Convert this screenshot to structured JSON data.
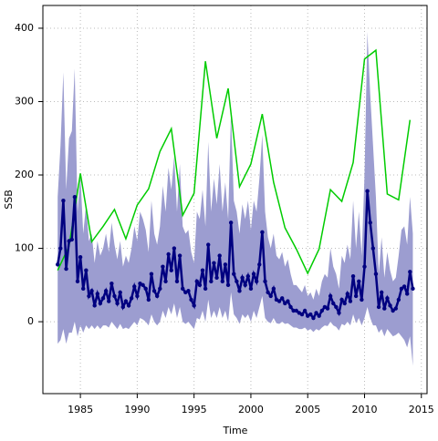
{
  "chart_data": {
    "type": "line",
    "x_label": "Time",
    "y_label": "SSB",
    "xlim": [
      1981.7,
      2015.5
    ],
    "ylim": [
      -98,
      431
    ],
    "xticks": [
      1985,
      1990,
      1995,
      2000,
      2005,
      2010,
      2015
    ],
    "yticks": [
      0,
      100,
      200,
      300,
      400
    ],
    "grid": true,
    "series": [
      {
        "color": "#00cc00",
        "x": [
          1983,
          1984,
          1985,
          1986,
          1987,
          1988,
          1989,
          1990,
          1991,
          1992,
          1993,
          1994,
          1995,
          1996,
          1997,
          1998,
          1999,
          2000,
          2001,
          2002,
          2003,
          2004,
          2005,
          2006,
          2007,
          2008,
          2009,
          2010,
          2011,
          2012,
          2013,
          2014
        ],
        "values": [
          70,
          103,
          202,
          109,
          130,
          153,
          113,
          159,
          181,
          232,
          263,
          145,
          175,
          355,
          250,
          318,
          184,
          215,
          283,
          190,
          128,
          99,
          66,
          99,
          180,
          164,
          217,
          358,
          370,
          174,
          166,
          275
        ]
      },
      {
        "color": "#000080",
        "markers": true,
        "band_color": "#9c9dd0",
        "x": [
          1983,
          1983.25,
          1983.5,
          1983.75,
          1984,
          1984.25,
          1984.5,
          1984.75,
          1985,
          1985.25,
          1985.5,
          1985.75,
          1986,
          1986.25,
          1986.5,
          1986.75,
          1987,
          1987.25,
          1987.5,
          1987.75,
          1988,
          1988.25,
          1988.5,
          1988.75,
          1989,
          1989.25,
          1989.5,
          1989.75,
          1990,
          1990.25,
          1990.5,
          1990.75,
          1991,
          1991.25,
          1991.5,
          1991.75,
          1992,
          1992.25,
          1992.5,
          1992.75,
          1993,
          1993.25,
          1993.5,
          1993.75,
          1994,
          1994.25,
          1994.5,
          1994.75,
          1995,
          1995.25,
          1995.5,
          1995.75,
          1996,
          1996.25,
          1996.5,
          1996.75,
          1997,
          1997.25,
          1997.5,
          1997.75,
          1998,
          1998.25,
          1998.5,
          1998.75,
          1999,
          1999.25,
          1999.5,
          1999.75,
          2000,
          2000.25,
          2000.5,
          2000.75,
          2001,
          2001.25,
          2001.5,
          2001.75,
          2002,
          2002.25,
          2002.5,
          2002.75,
          2003,
          2003.25,
          2003.5,
          2003.75,
          2004,
          2004.25,
          2004.5,
          2004.75,
          2005,
          2005.25,
          2005.5,
          2005.75,
          2006,
          2006.25,
          2006.5,
          2006.75,
          2007,
          2007.25,
          2007.5,
          2007.75,
          2008,
          2008.25,
          2008.5,
          2008.75,
          2009,
          2009.25,
          2009.5,
          2009.75,
          2010,
          2010.25,
          2010.5,
          2010.75,
          2011,
          2011.25,
          2011.5,
          2011.75,
          2012,
          2012.25,
          2012.5,
          2012.75,
          2013,
          2013.25,
          2013.5,
          2013.75,
          2014,
          2014.25
        ],
        "values": [
          78,
          100,
          165,
          72,
          110,
          112,
          170,
          55,
          88,
          45,
          70,
          35,
          42,
          22,
          38,
          25,
          32,
          42,
          28,
          52,
          35,
          25,
          40,
          20,
          28,
          22,
          32,
          48,
          35,
          52,
          50,
          45,
          30,
          65,
          42,
          35,
          45,
          75,
          55,
          92,
          70,
          100,
          55,
          90,
          45,
          40,
          42,
          30,
          22,
          55,
          50,
          70,
          45,
          105,
          55,
          80,
          60,
          90,
          55,
          78,
          50,
          135,
          65,
          55,
          42,
          60,
          50,
          62,
          45,
          65,
          55,
          78,
          122,
          55,
          40,
          35,
          45,
          30,
          28,
          32,
          25,
          28,
          20,
          15,
          15,
          12,
          10,
          15,
          8,
          10,
          5,
          12,
          8,
          15,
          20,
          18,
          35,
          25,
          20,
          12,
          30,
          25,
          38,
          28,
          62,
          35,
          55,
          30,
          75,
          178,
          135,
          100,
          65,
          20,
          40,
          18,
          32,
          22,
          15,
          18,
          30,
          45,
          48,
          38,
          68,
          45
        ],
        "upper": [
          170,
          240,
          340,
          180,
          250,
          260,
          345,
          150,
          200,
          120,
          160,
          110,
          120,
          80,
          110,
          90,
          100,
          120,
          95,
          135,
          105,
          85,
          110,
          75,
          90,
          80,
          100,
          130,
          110,
          150,
          140,
          125,
          95,
          165,
          120,
          105,
          130,
          185,
          150,
          210,
          180,
          225,
          150,
          215,
          130,
          120,
          125,
          95,
          80,
          150,
          140,
          180,
          130,
          245,
          150,
          195,
          160,
          215,
          150,
          190,
          140,
          285,
          165,
          150,
          120,
          160,
          140,
          165,
          125,
          165,
          150,
          195,
          255,
          150,
          115,
          100,
          120,
          90,
          85,
          95,
          75,
          85,
          65,
          50,
          50,
          45,
          40,
          50,
          35,
          40,
          30,
          45,
          35,
          55,
          65,
          60,
          100,
          75,
          65,
          45,
          90,
          80,
          105,
          85,
          165,
          100,
          150,
          90,
          200,
          395,
          310,
          240,
          170,
          65,
          115,
          60,
          95,
          70,
          55,
          60,
          90,
          125,
          130,
          105,
          170,
          120
        ],
        "lower": [
          -30,
          -25,
          -10,
          -30,
          -15,
          -15,
          0,
          -20,
          -5,
          -15,
          -5,
          -10,
          -5,
          -10,
          -5,
          -10,
          -5,
          -5,
          -8,
          0,
          -5,
          -10,
          -3,
          -10,
          -8,
          -10,
          -5,
          0,
          -5,
          5,
          3,
          0,
          -5,
          10,
          0,
          -5,
          0,
          15,
          5,
          20,
          10,
          25,
          5,
          20,
          0,
          -3,
          0,
          -5,
          -10,
          5,
          3,
          15,
          0,
          30,
          5,
          15,
          5,
          20,
          5,
          15,
          0,
          40,
          10,
          5,
          -3,
          10,
          5,
          10,
          0,
          15,
          5,
          20,
          35,
          5,
          0,
          -2,
          5,
          -2,
          -3,
          0,
          -3,
          -2,
          -5,
          -8,
          -8,
          -10,
          -10,
          -8,
          -12,
          -10,
          -14,
          -10,
          -12,
          -8,
          -5,
          -6,
          0,
          -5,
          -7,
          -12,
          -3,
          -5,
          0,
          -5,
          10,
          -2,
          5,
          -5,
          5,
          20,
          5,
          -5,
          -5,
          -15,
          -10,
          -20,
          -10,
          -15,
          -20,
          -18,
          -15,
          -20,
          -25,
          -35,
          -20,
          -60
        ]
      }
    ]
  }
}
